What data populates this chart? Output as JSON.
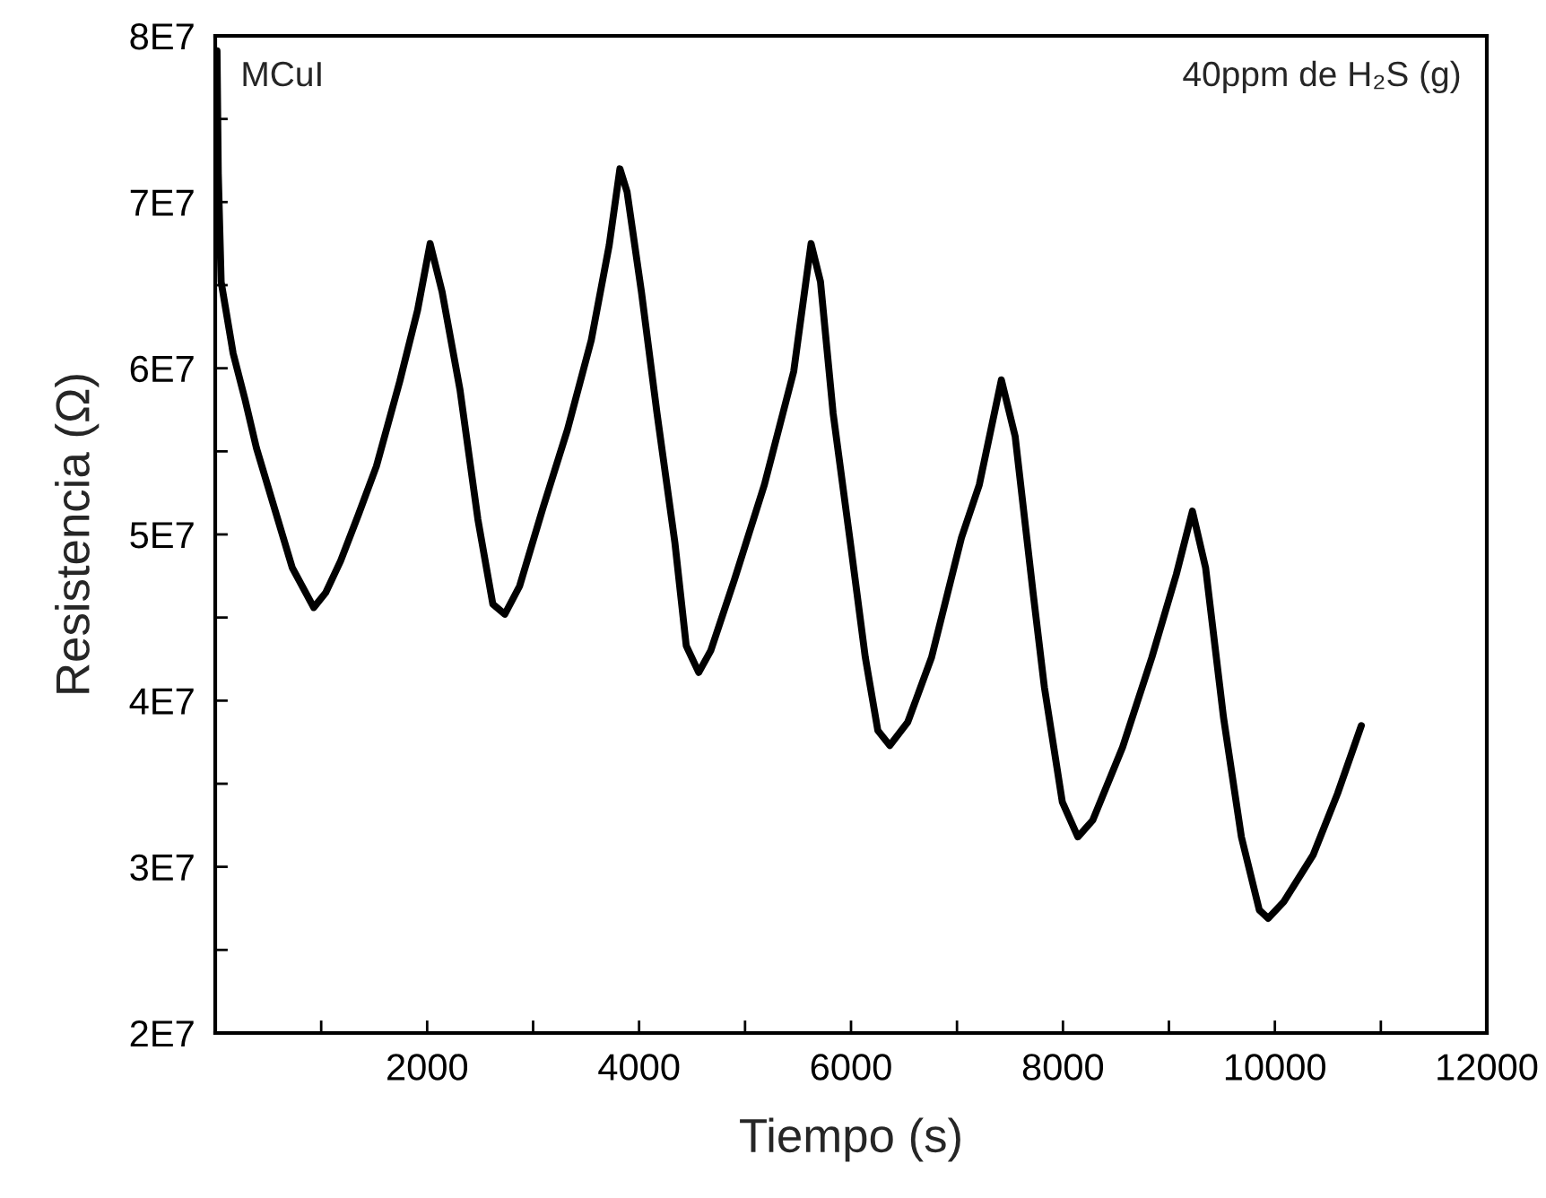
{
  "chart_data": {
    "type": "line",
    "xlabel": "Tiempo (s)",
    "ylabel": "Resistencia (Ω)",
    "annotations": [
      "MCuI",
      "40ppm de H₂S (g)"
    ],
    "series": [
      {
        "color": "#000000",
        "x": [
          17,
          29,
          56,
          169,
          282,
          389,
          558,
          727,
          930,
          1043,
          1183,
          1352,
          1521,
          1741,
          1910,
          2028,
          2141,
          2310,
          2479,
          2620,
          2733,
          2873,
          3093,
          3324,
          3549,
          3718,
          3819,
          3887,
          4022,
          4169,
          4338,
          4445,
          4563,
          4676,
          4901,
          5183,
          5459,
          5623,
          5712,
          5831,
          6000,
          6135,
          6253,
          6366,
          6535,
          6760,
          7042,
          7211,
          7419,
          7549,
          7718,
          7825,
          7994,
          8141,
          8281,
          8563,
          8839,
          9070,
          9222,
          9346,
          9515,
          9684,
          9853,
          9937,
          10084,
          10360,
          10591,
          10816
        ],
        "values": [
          79100000,
          71700000,
          65200000,
          60900000,
          58100000,
          55200000,
          51600000,
          48000000,
          45600000,
          46500000,
          48400000,
          51200000,
          54100000,
          59200000,
          63500000,
          67500000,
          64600000,
          58700000,
          50900000,
          45800000,
          45200000,
          46900000,
          51600000,
          56300000,
          61700000,
          67400000,
          72000000,
          70600000,
          64600000,
          57300000,
          49500000,
          43300000,
          41700000,
          43000000,
          47300000,
          53000000,
          59800000,
          67500000,
          65200000,
          57300000,
          49200000,
          42600000,
          38200000,
          37300000,
          38700000,
          42600000,
          49800000,
          53000000,
          59300000,
          55900000,
          46500000,
          40800000,
          33900000,
          31800000,
          32800000,
          37200000,
          42600000,
          47600000,
          51400000,
          48000000,
          39000000,
          31800000,
          27400000,
          26900000,
          27900000,
          30700000,
          34400000,
          38500000
        ]
      }
    ],
    "xlim": [
      0,
      12000
    ],
    "xticks": [
      {
        "value": 1000,
        "label": null
      },
      2000,
      {
        "value": 3000,
        "label": null
      },
      4000,
      {
        "value": 5000,
        "label": null
      },
      6000,
      {
        "value": 7000,
        "label": null
      },
      8000,
      {
        "value": 9000,
        "label": null
      },
      10000,
      {
        "value": 11000,
        "label": null
      },
      12000
    ],
    "ylim": [
      20000000,
      80000000
    ],
    "yticks": [
      {
        "value": 20000000,
        "label": "2E7"
      },
      {
        "value": 25000000,
        "label": null
      },
      {
        "value": 30000000,
        "label": "3E7"
      },
      {
        "value": 35000000,
        "label": null
      },
      {
        "value": 40000000,
        "label": "4E7"
      },
      {
        "value": 45000000,
        "label": null
      },
      {
        "value": 50000000,
        "label": "5E7"
      },
      {
        "value": 55000000,
        "label": null
      },
      {
        "value": 60000000,
        "label": "6E7"
      },
      {
        "value": 65000000,
        "label": null
      },
      {
        "value": 70000000,
        "label": "7E7"
      },
      {
        "value": 75000000,
        "label": null
      },
      {
        "value": 80000000,
        "label": "8E7"
      }
    ],
    "grid": false,
    "legend": false,
    "marker": "none",
    "line_style": "solid"
  }
}
